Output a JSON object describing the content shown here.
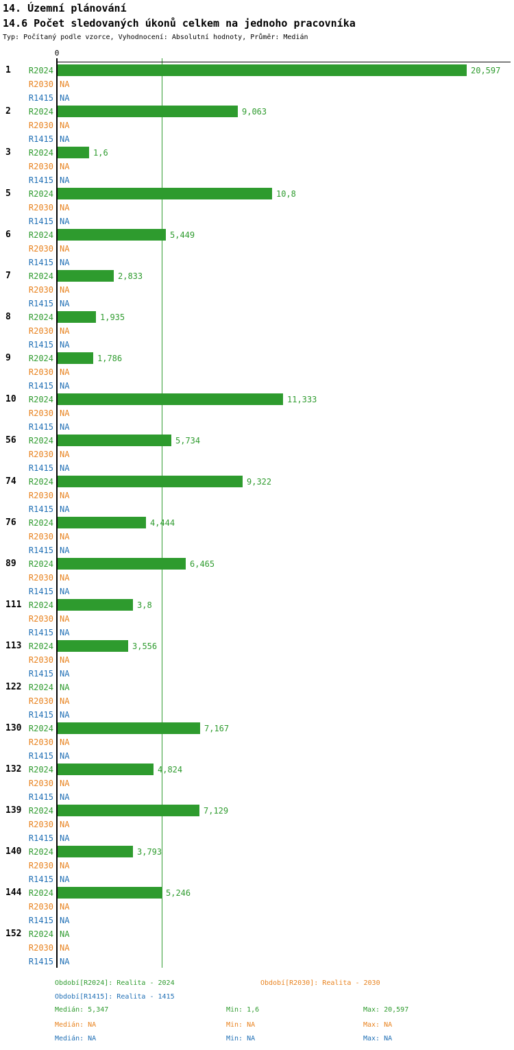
{
  "header": {
    "title_line1": "14. Územní plánování",
    "title_line2": "14.6 Počet sledovaných úkonů celkem na jednoho pracovníka",
    "meta": "Typ: Počítaný podle vzorce, Vyhodnocení: Absolutní hodnoty, Průměr: Medián"
  },
  "axis": {
    "zero_label": "0"
  },
  "colors": {
    "r2024": "#2e9b2e",
    "r2030": "#e8821e",
    "r1415": "#1f6fb5",
    "axis": "#000000",
    "median_line": "#2e9b2e",
    "background": "#ffffff"
  },
  "chart_data": {
    "type": "bar",
    "orientation": "horizontal",
    "title": "14.6 Počet sledovaných úkonů celkem na jednoho pracovníka",
    "subtitle": "Typ: Počítaný podle vzorce, Vyhodnocení: Absolutní hodnoty, Průměr: Medián",
    "xlim": [
      0,
      22.8
    ],
    "x_tick_labels": [
      "0"
    ],
    "grid": false,
    "na_text": "NA",
    "median_R2024": 5.347,
    "series_labels": [
      "R2024",
      "R2030",
      "R1415"
    ],
    "groups": [
      {
        "id": "1",
        "values": {
          "R2024": 20.597,
          "R2030": null,
          "R1415": null
        },
        "displays": {
          "R2024": "20,597",
          "R2030": "NA",
          "R1415": "NA"
        }
      },
      {
        "id": "2",
        "values": {
          "R2024": 9.063,
          "R2030": null,
          "R1415": null
        },
        "displays": {
          "R2024": "9,063",
          "R2030": "NA",
          "R1415": "NA"
        }
      },
      {
        "id": "3",
        "values": {
          "R2024": 1.6,
          "R2030": null,
          "R1415": null
        },
        "displays": {
          "R2024": "1,6",
          "R2030": "NA",
          "R1415": "NA"
        }
      },
      {
        "id": "5",
        "values": {
          "R2024": 10.8,
          "R2030": null,
          "R1415": null
        },
        "displays": {
          "R2024": "10,8",
          "R2030": "NA",
          "R1415": "NA"
        }
      },
      {
        "id": "6",
        "values": {
          "R2024": 5.449,
          "R2030": null,
          "R1415": null
        },
        "displays": {
          "R2024": "5,449",
          "R2030": "NA",
          "R1415": "NA"
        }
      },
      {
        "id": "7",
        "values": {
          "R2024": 2.833,
          "R2030": null,
          "R1415": null
        },
        "displays": {
          "R2024": "2,833",
          "R2030": "NA",
          "R1415": "NA"
        }
      },
      {
        "id": "8",
        "values": {
          "R2024": 1.935,
          "R2030": null,
          "R1415": null
        },
        "displays": {
          "R2024": "1,935",
          "R2030": "NA",
          "R1415": "NA"
        }
      },
      {
        "id": "9",
        "values": {
          "R2024": 1.786,
          "R2030": null,
          "R1415": null
        },
        "displays": {
          "R2024": "1,786",
          "R2030": "NA",
          "R1415": "NA"
        }
      },
      {
        "id": "10",
        "values": {
          "R2024": 11.333,
          "R2030": null,
          "R1415": null
        },
        "displays": {
          "R2024": "11,333",
          "R2030": "NA",
          "R1415": "NA"
        }
      },
      {
        "id": "56",
        "values": {
          "R2024": 5.734,
          "R2030": null,
          "R1415": null
        },
        "displays": {
          "R2024": "5,734",
          "R2030": "NA",
          "R1415": "NA"
        }
      },
      {
        "id": "74",
        "values": {
          "R2024": 9.322,
          "R2030": null,
          "R1415": null
        },
        "displays": {
          "R2024": "9,322",
          "R2030": "NA",
          "R1415": "NA"
        }
      },
      {
        "id": "76",
        "values": {
          "R2024": 4.444,
          "R2030": null,
          "R1415": null
        },
        "displays": {
          "R2024": "4,444",
          "R2030": "NA",
          "R1415": "NA"
        }
      },
      {
        "id": "89",
        "values": {
          "R2024": 6.465,
          "R2030": null,
          "R1415": null
        },
        "displays": {
          "R2024": "6,465",
          "R2030": "NA",
          "R1415": "NA"
        }
      },
      {
        "id": "111",
        "values": {
          "R2024": 3.8,
          "R2030": null,
          "R1415": null
        },
        "displays": {
          "R2024": "3,8",
          "R2030": "NA",
          "R1415": "NA"
        }
      },
      {
        "id": "113",
        "values": {
          "R2024": 3.556,
          "R2030": null,
          "R1415": null
        },
        "displays": {
          "R2024": "3,556",
          "R2030": "NA",
          "R1415": "NA"
        }
      },
      {
        "id": "122",
        "values": {
          "R2024": null,
          "R2030": null,
          "R1415": null
        },
        "displays": {
          "R2024": "NA",
          "R2030": "NA",
          "R1415": "NA"
        }
      },
      {
        "id": "130",
        "values": {
          "R2024": 7.167,
          "R2030": null,
          "R1415": null
        },
        "displays": {
          "R2024": "7,167",
          "R2030": "NA",
          "R1415": "NA"
        }
      },
      {
        "id": "132",
        "values": {
          "R2024": 4.824,
          "R2030": null,
          "R1415": null
        },
        "displays": {
          "R2024": "4,824",
          "R2030": "NA",
          "R1415": "NA"
        }
      },
      {
        "id": "139",
        "values": {
          "R2024": 7.129,
          "R2030": null,
          "R1415": null
        },
        "displays": {
          "R2024": "7,129",
          "R2030": "NA",
          "R1415": "NA"
        }
      },
      {
        "id": "140",
        "values": {
          "R2024": 3.793,
          "R2030": null,
          "R1415": null
        },
        "displays": {
          "R2024": "3,793",
          "R2030": "NA",
          "R1415": "NA"
        }
      },
      {
        "id": "144",
        "values": {
          "R2024": 5.246,
          "R2030": null,
          "R1415": null
        },
        "displays": {
          "R2024": "5,246",
          "R2030": "NA",
          "R1415": "NA"
        }
      },
      {
        "id": "152",
        "values": {
          "R2024": null,
          "R2030": null,
          "R1415": null
        },
        "displays": {
          "R2024": "NA",
          "R2030": "NA",
          "R1415": "NA"
        }
      }
    ]
  },
  "footer": {
    "legend": [
      {
        "series": "R2024",
        "label": "Období[R2024]: Realita - 2024"
      },
      {
        "series": "R2030",
        "label": "Období[R2030]: Realita - 2030"
      },
      {
        "series": "R1415",
        "label": "Období[R1415]: Realita - 1415"
      }
    ],
    "stats": [
      {
        "series": "R2024",
        "median": "Medián: 5,347",
        "min": "Min: 1,6",
        "max": "Max: 20,597"
      },
      {
        "series": "R2030",
        "median": "Medián: NA",
        "min": "Min: NA",
        "max": "Max: NA"
      },
      {
        "series": "R1415",
        "median": "Medián: NA",
        "min": "Min: NA",
        "max": "Max: NA"
      }
    ]
  }
}
